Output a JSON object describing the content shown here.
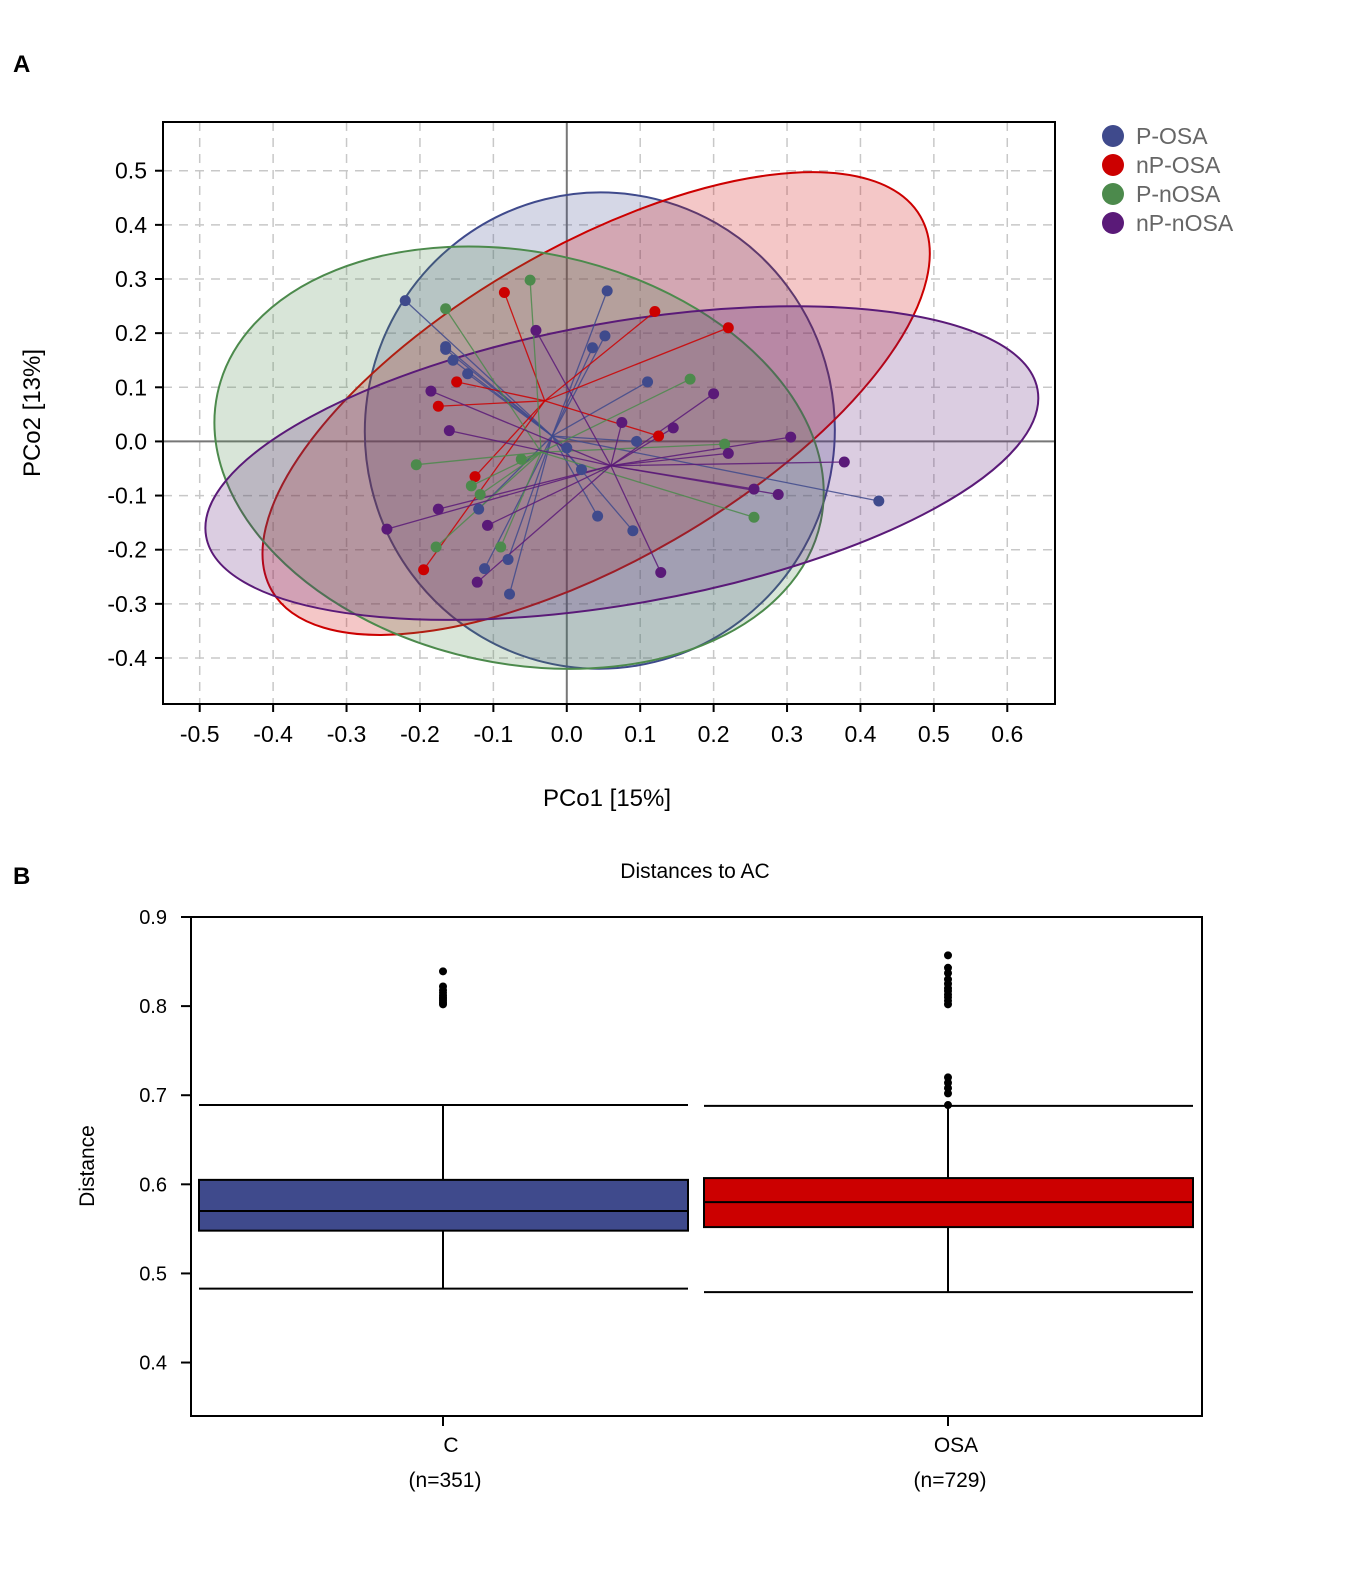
{
  "panels": {
    "a_label": "A",
    "b_label": "B"
  },
  "colors": {
    "P-OSA": "#3f4a8c",
    "nP-OSA": "#cc0000",
    "P-nOSA": "#4c8a4c",
    "nP-nOSA": "#5a1a78"
  },
  "chart_data": [
    {
      "type": "scatter",
      "title": "",
      "xlabel": "PCo1 [15%]",
      "ylabel": "PCo2 [13%]",
      "xlim": [
        -0.55,
        0.665
      ],
      "ylim": [
        -0.485,
        0.59
      ],
      "xticks": [
        -0.5,
        -0.4,
        -0.3,
        -0.2,
        -0.1,
        0.0,
        0.1,
        0.2,
        0.3,
        0.4,
        0.5,
        0.6
      ],
      "xtick_labels": [
        "-0.5",
        "-0.4",
        "-0.3",
        "-0.2",
        "-0.1",
        "0.0",
        "0.1",
        "0.2",
        "0.3",
        "0.4",
        "0.5",
        "0.6"
      ],
      "yticks": [
        0.5,
        0.4,
        0.3,
        0.2,
        0.1,
        0.0,
        -0.1,
        -0.2,
        -0.3,
        -0.4
      ],
      "ytick_labels": [
        "0.5",
        "0.4",
        "0.3",
        "0.2",
        "0.1",
        "0.0",
        "-0.1",
        "-0.2",
        "-0.3",
        "-0.4"
      ],
      "grid": true,
      "legend_position": "top-right, outside plot",
      "series": [
        {
          "name": "P-OSA",
          "centroid": [
            -0.02,
            0.01
          ],
          "ellipse": {
            "cx": 0.045,
            "cy": 0.02,
            "rx": 0.32,
            "ry": 0.44,
            "angle_deg": -8
          },
          "points": [
            [
              -0.22,
              0.26
            ],
            [
              -0.165,
              0.175
            ],
            [
              -0.165,
              0.17
            ],
            [
              -0.155,
              0.15
            ],
            [
              -0.135,
              0.125
            ],
            [
              0.055,
              0.278
            ],
            [
              0.052,
              0.195
            ],
            [
              0.035,
              0.173
            ],
            [
              0.11,
              0.11
            ],
            [
              0.095,
              0.0
            ],
            [
              0.0,
              -0.012
            ],
            [
              0.02,
              -0.052
            ],
            [
              0.042,
              -0.138
            ],
            [
              0.09,
              -0.165
            ],
            [
              -0.12,
              -0.125
            ],
            [
              -0.08,
              -0.218
            ],
            [
              -0.112,
              -0.235
            ],
            [
              -0.078,
              -0.282
            ],
            [
              0.425,
              -0.11
            ]
          ]
        },
        {
          "name": "nP-OSA",
          "centroid": [
            -0.03,
            0.075
          ],
          "ellipse": {
            "cx": 0.04,
            "cy": 0.07,
            "rx": 0.51,
            "ry": 0.29,
            "angle_deg": 30
          },
          "points": [
            [
              -0.085,
              0.275
            ],
            [
              0.12,
              0.24
            ],
            [
              0.22,
              0.21
            ],
            [
              -0.15,
              0.11
            ],
            [
              -0.175,
              0.065
            ],
            [
              0.125,
              0.01
            ],
            [
              -0.125,
              -0.065
            ],
            [
              -0.195,
              -0.237
            ]
          ]
        },
        {
          "name": "P-nOSA",
          "centroid": [
            -0.035,
            -0.02
          ],
          "ellipse": {
            "cx": -0.065,
            "cy": -0.03,
            "rx": 0.42,
            "ry": 0.38,
            "angle_deg": -12
          },
          "points": [
            [
              -0.05,
              0.298
            ],
            [
              -0.165,
              0.245
            ],
            [
              0.168,
              0.115
            ],
            [
              0.215,
              -0.005
            ],
            [
              -0.205,
              -0.043
            ],
            [
              -0.062,
              -0.033
            ],
            [
              -0.13,
              -0.082
            ],
            [
              -0.118,
              -0.098
            ],
            [
              0.255,
              -0.14
            ],
            [
              -0.178,
              -0.195
            ],
            [
              -0.09,
              -0.195
            ]
          ]
        },
        {
          "name": "nP-nOSA",
          "centroid": [
            0.06,
            -0.045
          ],
          "ellipse": {
            "cx": 0.075,
            "cy": -0.04,
            "rx": 0.575,
            "ry": 0.26,
            "angle_deg": 10
          },
          "points": [
            [
              -0.042,
              0.205
            ],
            [
              -0.185,
              0.093
            ],
            [
              -0.16,
              0.02
            ],
            [
              0.2,
              0.088
            ],
            [
              0.075,
              0.035
            ],
            [
              0.145,
              0.025
            ],
            [
              0.305,
              0.008
            ],
            [
              0.22,
              -0.022
            ],
            [
              0.378,
              -0.038
            ],
            [
              0.255,
              -0.088
            ],
            [
              0.288,
              -0.098
            ],
            [
              -0.175,
              -0.125
            ],
            [
              -0.108,
              -0.155
            ],
            [
              -0.245,
              -0.162
            ],
            [
              0.128,
              -0.242
            ],
            [
              -0.122,
              -0.26
            ]
          ]
        }
      ]
    },
    {
      "type": "box",
      "title": "Distances to AC",
      "xlabel": "",
      "ylabel": "Distance",
      "ylim": [
        0.34,
        0.9
      ],
      "yticks": [
        0.9,
        0.8,
        0.7,
        0.6,
        0.5,
        0.4
      ],
      "ytick_labels": [
        "0.9",
        "0.8",
        "0.7",
        "0.6",
        "0.5",
        "0.4"
      ],
      "categories": [
        "C",
        "OSA"
      ],
      "counts": [
        "(n=351)",
        "(n=729)"
      ],
      "boxes": [
        {
          "name": "C",
          "color": "#3f4a8c",
          "whisker_low": 0.483,
          "q1": 0.548,
          "median": 0.57,
          "q3": 0.605,
          "whisker_high": 0.689,
          "outliers": [
            0.839,
            0.822,
            0.818,
            0.815,
            0.812,
            0.81,
            0.808,
            0.806,
            0.804,
            0.802
          ]
        },
        {
          "name": "OSA",
          "color": "#cc0000",
          "whisker_low": 0.479,
          "q1": 0.552,
          "median": 0.58,
          "q3": 0.607,
          "whisker_high": 0.688,
          "outliers": [
            0.857,
            0.843,
            0.837,
            0.83,
            0.825,
            0.82,
            0.817,
            0.813,
            0.81,
            0.806,
            0.802,
            0.72,
            0.714,
            0.708,
            0.702,
            0.689
          ]
        }
      ]
    }
  ]
}
